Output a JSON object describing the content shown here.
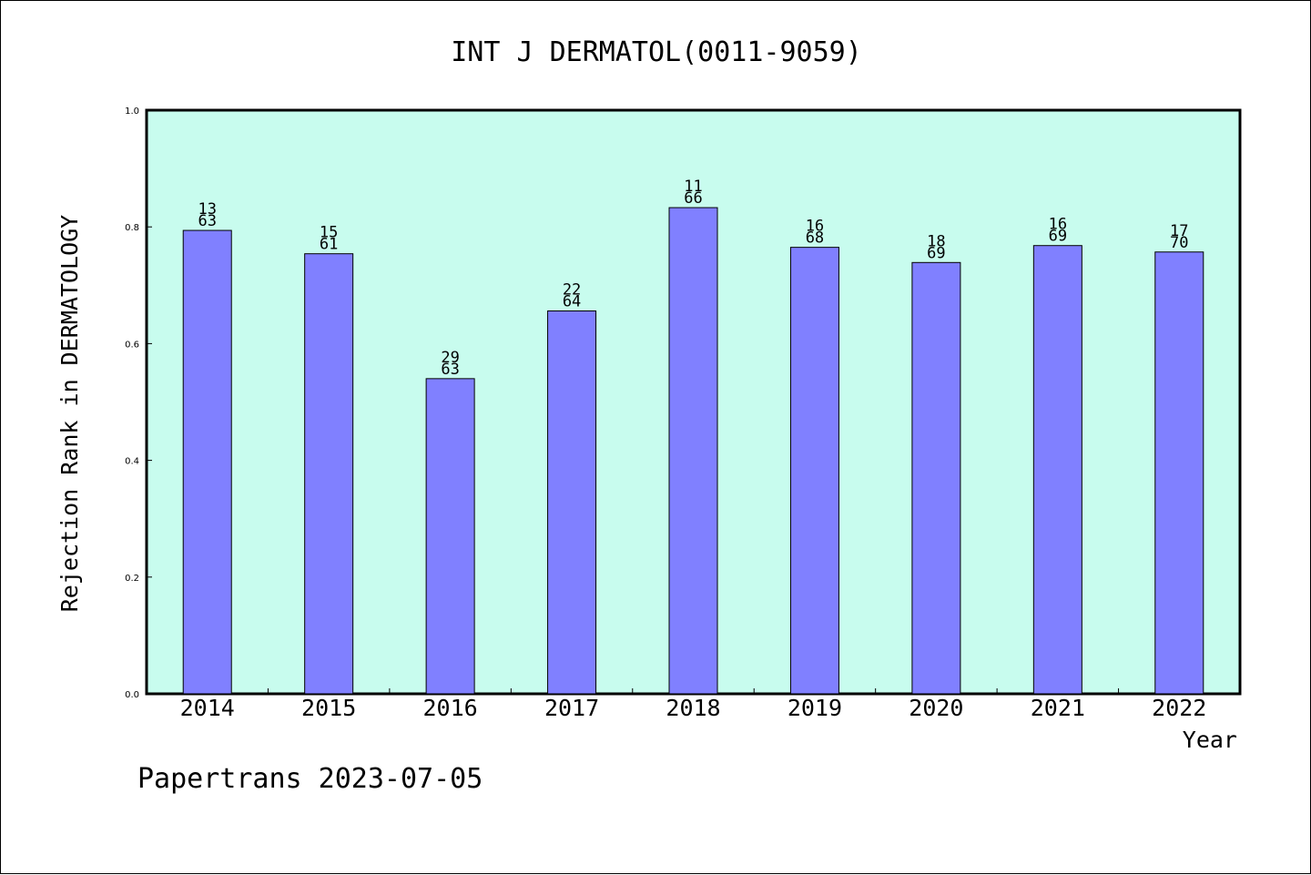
{
  "chart_data": {
    "type": "bar",
    "title": "INT J DERMATOL(0011-9059)",
    "xlabel": "Year",
    "ylabel": "Rejection Rank in DERMATOLOGY",
    "footer": "Papertrans 2023-07-05",
    "categories": [
      "2014",
      "2015",
      "2016",
      "2017",
      "2018",
      "2019",
      "2020",
      "2021",
      "2022"
    ],
    "values": [
      0.794,
      0.754,
      0.54,
      0.656,
      0.833,
      0.765,
      0.739,
      0.768,
      0.757
    ],
    "labels": [
      {
        "rank": "13",
        "total": "63"
      },
      {
        "rank": "15",
        "total": "61"
      },
      {
        "rank": "29",
        "total": "63"
      },
      {
        "rank": "22",
        "total": "64"
      },
      {
        "rank": "11",
        "total": "66"
      },
      {
        "rank": "16",
        "total": "68"
      },
      {
        "rank": "18",
        "total": "69"
      },
      {
        "rank": "16",
        "total": "69"
      },
      {
        "rank": "17",
        "total": "70"
      }
    ],
    "ylim": [
      0,
      1.0
    ],
    "yticks": [
      "0.0",
      "0.2",
      "0.4",
      "0.6",
      "0.8",
      "1.0"
    ],
    "grid": false,
    "colors": {
      "plot_background": "#c8fcee",
      "bar": "#8080ff",
      "bar_edge": "#000000"
    }
  }
}
